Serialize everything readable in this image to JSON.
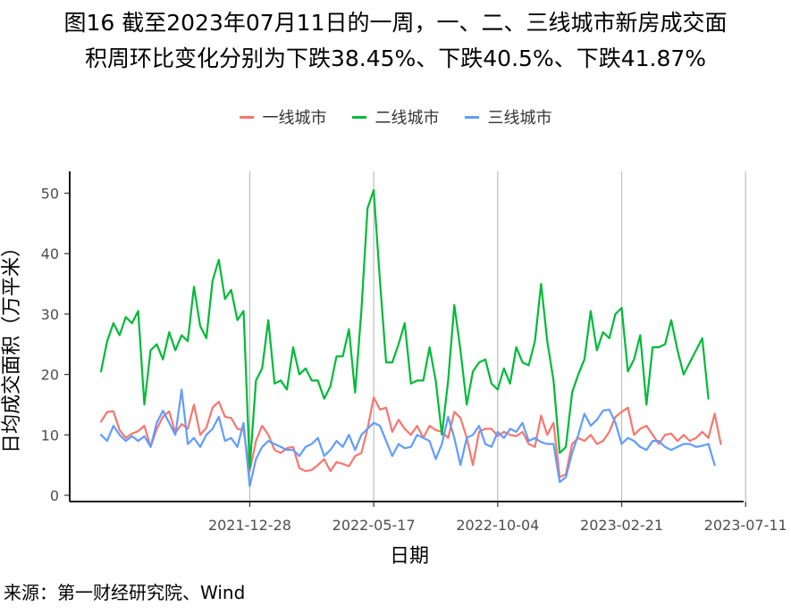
{
  "title_line1": "图16  截至2023年07月11日的一周，一、二、三线城市新房成交面",
  "title_line2": "积周环比变化分别为下跌38.45%、下跌40.5%、下跌41.87%",
  "source": "来源：第一财经研究院、Wind",
  "chart_data": {
    "type": "line",
    "xlabel": "日期",
    "ylabel": "日均成交面积（万平米）",
    "ylim": [
      0,
      52
    ],
    "yticks": [
      0,
      10,
      20,
      30,
      40,
      50
    ],
    "xtick_labels": [
      "2021-12-28",
      "2022-05-17",
      "2022-10-04",
      "2023-02-21",
      "2023-07-11"
    ],
    "xtick_positions": [
      24,
      44,
      64,
      84,
      104
    ],
    "grid": "vertical",
    "legend_position": "top",
    "x_start": "2021-06-29",
    "x_step": "7 days",
    "series": [
      {
        "name": "一线城市",
        "color": "#F8766D",
        "values": [
          12.2,
          13.8,
          13.9,
          10.8,
          9.5,
          10.2,
          10.6,
          11.5,
          8.0,
          11.0,
          13.0,
          13.9,
          10.3,
          11.8,
          11.0,
          15.0,
          10.0,
          11.2,
          14.5,
          15.5,
          13.0,
          12.8,
          11.0,
          10.8,
          4.0,
          9.0,
          11.5,
          10.0,
          7.5,
          7.0,
          7.8,
          8.0,
          4.5,
          4.0,
          4.2,
          5.0,
          6.0,
          4.0,
          5.5,
          5.2,
          4.8,
          6.5,
          7.0,
          11.0,
          16.2,
          14.2,
          14.5,
          10.5,
          12.5,
          11.0,
          10.0,
          11.5,
          9.5,
          11.5,
          10.8,
          10.5,
          9.5,
          13.8,
          12.8,
          9.5,
          5.0,
          10.5,
          11.0,
          11.0,
          9.8,
          10.5,
          10.0,
          9.8,
          10.5,
          8.5,
          8.0,
          13.2,
          10.0,
          12.0,
          3.0,
          3.5,
          8.5,
          9.5,
          9.0,
          10.0,
          8.5,
          9.0,
          10.5,
          13.0,
          13.8,
          14.5,
          10.0,
          11.0,
          11.5,
          10.0,
          8.5,
          10.0,
          10.2,
          9.0,
          10.0,
          9.0,
          9.5,
          10.5,
          9.5,
          13.5,
          8.5
        ]
      },
      {
        "name": "二线城市",
        "color": "#00BA38",
        "values": [
          20.5,
          25.5,
          28.5,
          26.5,
          29.5,
          28.5,
          30.5,
          15.0,
          24.0,
          25.0,
          22.5,
          27.0,
          24.0,
          26.5,
          25.5,
          34.5,
          28.0,
          26.0,
          35.5,
          39.0,
          32.5,
          34.0,
          29.0,
          30.5,
          4.5,
          19.0,
          21.0,
          29.0,
          18.5,
          19.0,
          17.5,
          24.5,
          20.0,
          21.0,
          19.0,
          19.0,
          16.0,
          18.0,
          23.0,
          23.0,
          27.5,
          17.0,
          30.5,
          47.5,
          50.5,
          35.5,
          22.0,
          22.0,
          25.0,
          28.5,
          18.5,
          19.0,
          19.0,
          24.5,
          19.0,
          10.0,
          19.0,
          31.5,
          24.0,
          15.0,
          20.5,
          22.0,
          22.5,
          18.5,
          17.5,
          21.0,
          18.5,
          24.5,
          22.0,
          21.5,
          25.5,
          35.0,
          25.5,
          19.0,
          7.0,
          8.0,
          17.0,
          20.0,
          22.5,
          30.5,
          24.0,
          27.0,
          26.0,
          30.0,
          31.0,
          20.5,
          22.5,
          26.5,
          15.0,
          24.5,
          24.5,
          25.0,
          29.0,
          24.0,
          20.0,
          22.0,
          24.0,
          26.0,
          16.0
        ]
      },
      {
        "name": "三线城市",
        "color": "#619CFF",
        "values": [
          10.0,
          9.0,
          11.5,
          10.0,
          9.0,
          9.8,
          9.0,
          9.8,
          8.0,
          12.0,
          14.0,
          12.0,
          10.0,
          17.5,
          8.5,
          9.5,
          8.0,
          10.0,
          11.0,
          13.0,
          9.0,
          9.5,
          8.0,
          12.0,
          1.5,
          6.0,
          8.0,
          9.0,
          8.5,
          8.0,
          7.5,
          7.5,
          6.5,
          8.0,
          8.5,
          9.5,
          6.5,
          7.5,
          9.0,
          8.0,
          10.0,
          7.5,
          10.0,
          11.0,
          12.0,
          11.5,
          9.0,
          6.5,
          8.5,
          7.8,
          8.0,
          10.0,
          9.5,
          9.0,
          6.0,
          8.5,
          13.0,
          9.5,
          5.0,
          9.5,
          10.0,
          11.5,
          8.5,
          8.0,
          10.5,
          9.5,
          11.0,
          10.5,
          12.0,
          9.0,
          9.5,
          8.8,
          8.5,
          8.5,
          2.2,
          3.0,
          7.0,
          10.0,
          13.5,
          11.5,
          12.5,
          14.0,
          14.2,
          12.0,
          8.5,
          9.5,
          9.0,
          8.0,
          7.5,
          9.0,
          9.0,
          8.0,
          7.5,
          8.0,
          8.5,
          8.5,
          8.0,
          8.2,
          8.5,
          5.0
        ]
      }
    ]
  }
}
